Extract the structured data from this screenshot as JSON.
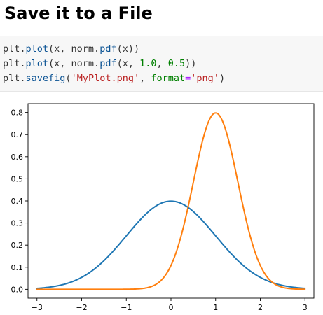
{
  "section": {
    "title": "Save it to a File"
  },
  "code": {
    "lines": [
      {
        "p0": "plt.",
        "p1": "plot",
        "p2": "(x, norm.",
        "p3": "pdf",
        "p4": "(x))",
        "p5": "",
        "p6": "",
        "p7": "",
        "p8": ""
      },
      {
        "p0": "plt.",
        "p1": "plot",
        "p2": "(x, norm.",
        "p3": "pdf",
        "p4": "(x, ",
        "p5": "1.0",
        "p6": ", ",
        "p7": "0.5",
        "p8": "))"
      }
    ],
    "line3": {
      "p0": "plt.",
      "p1": "savefig",
      "p2": "(",
      "p3": "'MyPlot.png'",
      "p4": ", ",
      "p5": "format",
      "p6": "=",
      "p7": "'png'",
      "p8": ")"
    }
  },
  "colors": {
    "series_blue": "#1f77b4",
    "series_orange": "#ff7f0e"
  },
  "chart_data": {
    "type": "line",
    "title": "",
    "xlabel": "",
    "ylabel": "",
    "xlim": [
      -3.2,
      3.2
    ],
    "ylim": [
      -0.04,
      0.84
    ],
    "x_ticks": [
      -3,
      -2,
      -1,
      0,
      1,
      2,
      3
    ],
    "x_tick_labels": [
      "−3",
      "−2",
      "−1",
      "0",
      "1",
      "2",
      "3"
    ],
    "y_ticks": [
      0.0,
      0.1,
      0.2,
      0.3,
      0.4,
      0.5,
      0.6,
      0.7,
      0.8
    ],
    "y_tick_labels": [
      "0.0",
      "0.1",
      "0.2",
      "0.3",
      "0.4",
      "0.5",
      "0.6",
      "0.7",
      "0.8"
    ],
    "x_range": [
      -3,
      3
    ],
    "series": [
      {
        "name": "norm.pdf(x)",
        "mean": 0.0,
        "std": 1.0,
        "color": "#1f77b4"
      },
      {
        "name": "norm.pdf(x, 1.0, 0.5)",
        "mean": 1.0,
        "std": 0.5,
        "color": "#ff7f0e"
      }
    ],
    "grid": false,
    "legend": "none"
  }
}
